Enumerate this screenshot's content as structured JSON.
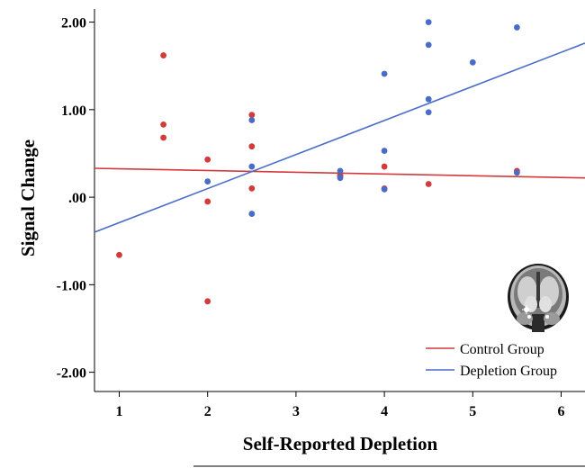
{
  "chart_data": {
    "type": "scatter",
    "title": "",
    "xlabel": "Self-Reported Depletion",
    "ylabel": "Signal Change",
    "xlim": [
      0.72,
      6.27
    ],
    "ylim": [
      -2.22,
      2.15
    ],
    "xticks": [
      1,
      2,
      3,
      4,
      5,
      6
    ],
    "xtick_labels": [
      "1",
      "2",
      "3",
      "4",
      "5",
      "6"
    ],
    "yticks": [
      2,
      1,
      0,
      -1,
      -2
    ],
    "ytick_labels": [
      "2.00",
      "1.00",
      ".00",
      "-1.00",
      "-2.00"
    ],
    "legend_position": "bottom-right",
    "series": [
      {
        "name": "Control Group",
        "color": "#d33a3a",
        "points": [
          [
            1,
            -0.66
          ],
          [
            1.5,
            1.62
          ],
          [
            1.5,
            0.83
          ],
          [
            1.5,
            0.68
          ],
          [
            2,
            0.43
          ],
          [
            2,
            -0.05
          ],
          [
            2,
            -1.19
          ],
          [
            2.5,
            0.94
          ],
          [
            2.5,
            0.58
          ],
          [
            2.5,
            0.1
          ],
          [
            3.5,
            0.25
          ],
          [
            3.5,
            0.24
          ],
          [
            4,
            0.35
          ],
          [
            4,
            0.1
          ],
          [
            4.5,
            0.15
          ],
          [
            5.5,
            0.3
          ]
        ],
        "fit": {
          "x": [
            0.72,
            6.27
          ],
          "y": [
            0.33,
            0.22
          ]
        }
      },
      {
        "name": "Depletion Group",
        "color": "#4a6cc9",
        "points": [
          [
            2,
            0.18
          ],
          [
            2.5,
            0.88
          ],
          [
            2.5,
            0.35
          ],
          [
            2.5,
            -0.19
          ],
          [
            3.5,
            0.3
          ],
          [
            3.5,
            0.22
          ],
          [
            4,
            1.41
          ],
          [
            4,
            0.53
          ],
          [
            4,
            0.09
          ],
          [
            4.5,
            2.0
          ],
          [
            4.5,
            1.74
          ],
          [
            4.5,
            1.12
          ],
          [
            4.5,
            0.97
          ],
          [
            5,
            1.54
          ],
          [
            5.5,
            1.94
          ],
          [
            5.5,
            0.28
          ]
        ],
        "fit": {
          "x": [
            0.72,
            6.27
          ],
          "y": [
            -0.4,
            1.76
          ]
        }
      }
    ],
    "inset": "brain-coronal-slice"
  }
}
